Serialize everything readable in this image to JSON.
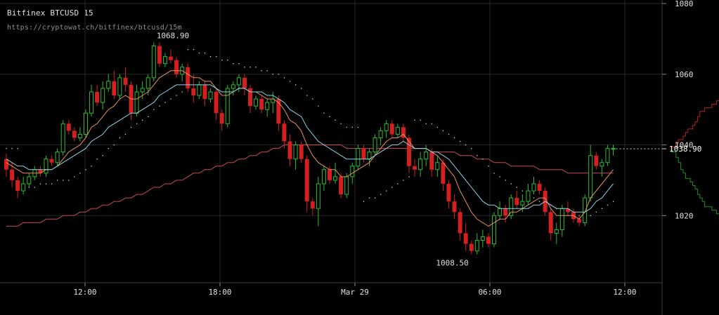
{
  "header": {
    "title": "Bitfinex BTCUSD 15",
    "url": "https://cryptowat.ch/bitfinex/btcusd/15m"
  },
  "colors": {
    "background": "#000000",
    "grid": "#262626",
    "up_candle": "#2bbf2b",
    "down_candle": "#d41f1f",
    "ema_fast": "#e8915a",
    "ema_slow": "#8fd4e6",
    "sma_long": "#c8485f",
    "sar": "#dcdcdc",
    "text": "#e0e0e0",
    "bid_depth": "#1f8f1f",
    "ask_depth": "#b32222"
  },
  "chart_data": {
    "type": "candlestick",
    "title": "Bitfinex BTCUSD 15",
    "ylim": [
      1001,
      1081
    ],
    "y_ticks": [
      1020,
      1040,
      1060,
      1080
    ],
    "y_tick_labels": [
      "1020",
      "1040",
      "1060",
      "1080"
    ],
    "x_tick_labels": [
      "12:00",
      "18:00",
      "Mar 29",
      "06:00",
      "12:00"
    ],
    "last_price": 1038.9,
    "annotations": {
      "high": "1068.90",
      "low": "1008.50",
      "last": "1038.90"
    },
    "candles": [
      [
        1036,
        1037.5,
        1031,
        1033
      ],
      [
        1033,
        1035,
        1028,
        1030
      ],
      [
        1030,
        1031,
        1025,
        1027
      ],
      [
        1027,
        1031,
        1026,
        1029
      ],
      [
        1029,
        1032,
        1028,
        1031
      ],
      [
        1031,
        1034,
        1030,
        1033
      ],
      [
        1033,
        1034,
        1031,
        1032
      ],
      [
        1032,
        1037,
        1031,
        1036
      ],
      [
        1036,
        1037,
        1034,
        1035
      ],
      [
        1035,
        1039,
        1034,
        1038
      ],
      [
        1038,
        1047,
        1037,
        1046
      ],
      [
        1046,
        1047,
        1043,
        1044
      ],
      [
        1044,
        1045,
        1041,
        1042
      ],
      [
        1042,
        1045,
        1041,
        1043
      ],
      [
        1043,
        1050,
        1042,
        1049
      ],
      [
        1049,
        1057,
        1048,
        1055
      ],
      [
        1055,
        1057,
        1051,
        1052
      ],
      [
        1052,
        1058,
        1050,
        1056
      ],
      [
        1056,
        1060,
        1055,
        1058
      ],
      [
        1058,
        1061,
        1053,
        1054
      ],
      [
        1054,
        1060,
        1053,
        1059
      ],
      [
        1059,
        1062,
        1055,
        1057
      ],
      [
        1057,
        1058,
        1047,
        1049
      ],
      [
        1049,
        1057,
        1048,
        1055
      ],
      [
        1055,
        1058,
        1053,
        1056
      ],
      [
        1056,
        1060,
        1054,
        1059
      ],
      [
        1059,
        1069,
        1058,
        1068
      ],
      [
        1068,
        1069,
        1062,
        1063
      ],
      [
        1063,
        1066,
        1062,
        1065
      ],
      [
        1065,
        1067,
        1063,
        1064
      ],
      [
        1064,
        1065,
        1059,
        1060
      ],
      [
        1060,
        1063,
        1058,
        1062
      ],
      [
        1062,
        1063,
        1055,
        1056
      ],
      [
        1056,
        1060,
        1052,
        1054
      ],
      [
        1054,
        1058,
        1053,
        1057
      ],
      [
        1057,
        1058,
        1051,
        1053
      ],
      [
        1053,
        1056,
        1052,
        1055
      ],
      [
        1055,
        1056,
        1047,
        1049
      ],
      [
        1049,
        1050,
        1044,
        1046
      ],
      [
        1046,
        1057,
        1045,
        1056
      ],
      [
        1056,
        1058,
        1054,
        1057
      ],
      [
        1057,
        1060,
        1055,
        1059
      ],
      [
        1059,
        1060,
        1054,
        1056
      ],
      [
        1056,
        1057,
        1049,
        1051
      ],
      [
        1051,
        1054,
        1050,
        1053
      ],
      [
        1053,
        1054,
        1049,
        1050
      ],
      [
        1050,
        1053,
        1048,
        1052
      ],
      [
        1052,
        1055,
        1049,
        1053
      ],
      [
        1053,
        1054,
        1044,
        1046
      ],
      [
        1046,
        1047,
        1039,
        1041
      ],
      [
        1041,
        1043,
        1034,
        1036
      ],
      [
        1036,
        1041,
        1033,
        1040
      ],
      [
        1040,
        1041,
        1035,
        1036
      ],
      [
        1036,
        1037,
        1021,
        1024
      ],
      [
        1024,
        1025,
        1020,
        1022
      ],
      [
        1022,
        1031,
        1017,
        1029
      ],
      [
        1029,
        1034,
        1027,
        1033
      ],
      [
        1033,
        1034,
        1029,
        1030
      ],
      [
        1030,
        1035,
        1029,
        1031
      ],
      [
        1031,
        1032,
        1025,
        1026
      ],
      [
        1026,
        1032,
        1025,
        1031
      ],
      [
        1031,
        1035,
        1029,
        1034
      ],
      [
        1034,
        1040,
        1033,
        1039
      ],
      [
        1039,
        1040,
        1035,
        1036
      ],
      [
        1036,
        1039,
        1034,
        1038
      ],
      [
        1038,
        1043,
        1037,
        1042
      ],
      [
        1042,
        1045,
        1040,
        1044
      ],
      [
        1044,
        1047,
        1042,
        1046
      ],
      [
        1046,
        1047,
        1042,
        1043
      ],
      [
        1043,
        1046,
        1042,
        1045
      ],
      [
        1045,
        1046,
        1041,
        1042
      ],
      [
        1042,
        1043,
        1032,
        1034
      ],
      [
        1034,
        1036,
        1031,
        1033
      ],
      [
        1033,
        1038,
        1031,
        1036
      ],
      [
        1036,
        1040,
        1034,
        1038
      ],
      [
        1038,
        1039,
        1031,
        1033
      ],
      [
        1033,
        1037,
        1031,
        1035
      ],
      [
        1035,
        1036,
        1027,
        1029
      ],
      [
        1029,
        1030,
        1022,
        1024
      ],
      [
        1024,
        1026,
        1019,
        1021
      ],
      [
        1021,
        1022,
        1013,
        1015
      ],
      [
        1015,
        1018,
        1010,
        1012
      ],
      [
        1012,
        1013,
        1009,
        1010
      ],
      [
        1010,
        1015,
        1009,
        1013
      ],
      [
        1013,
        1016,
        1011,
        1014
      ],
      [
        1014,
        1015,
        1011,
        1012
      ],
      [
        1012,
        1021,
        1011,
        1020
      ],
      [
        1020,
        1024,
        1019,
        1022
      ],
      [
        1022,
        1023,
        1018,
        1020
      ],
      [
        1020,
        1026,
        1019,
        1025
      ],
      [
        1025,
        1027,
        1022,
        1023
      ],
      [
        1023,
        1026,
        1021,
        1024
      ],
      [
        1024,
        1029,
        1023,
        1027
      ],
      [
        1027,
        1031,
        1026,
        1029
      ],
      [
        1029,
        1030,
        1026,
        1027
      ],
      [
        1027,
        1028,
        1020,
        1021
      ],
      [
        1021,
        1022,
        1013,
        1015
      ],
      [
        1015,
        1018,
        1012,
        1016
      ],
      [
        1016,
        1023,
        1014,
        1022
      ],
      [
        1022,
        1024,
        1020,
        1021
      ],
      [
        1021,
        1022,
        1018,
        1019
      ],
      [
        1019,
        1020,
        1017,
        1018
      ],
      [
        1018,
        1026,
        1017,
        1025
      ],
      [
        1025,
        1040,
        1024,
        1037
      ],
      [
        1037,
        1038,
        1033,
        1034
      ],
      [
        1034,
        1036,
        1031,
        1035
      ],
      [
        1035,
        1040,
        1034,
        1039
      ],
      [
        1039,
        1040,
        1037,
        1039
      ]
    ],
    "ema_fast": [
      1035,
      1034,
      1033,
      1032,
      1032,
      1032,
      1032,
      1033,
      1033,
      1034,
      1036,
      1038,
      1039,
      1040,
      1042,
      1045,
      1046,
      1048,
      1050,
      1051,
      1053,
      1054,
      1053,
      1053,
      1054,
      1055,
      1057,
      1059,
      1060,
      1061,
      1061,
      1061,
      1060,
      1059,
      1059,
      1058,
      1058,
      1056,
      1054,
      1054,
      1055,
      1056,
      1056,
      1055,
      1055,
      1054,
      1053,
      1053,
      1052,
      1050,
      1047,
      1046,
      1044,
      1040,
      1037,
      1035,
      1034,
      1033,
      1033,
      1031,
      1031,
      1032,
      1033,
      1034,
      1035,
      1037,
      1039,
      1041,
      1042,
      1042,
      1043,
      1041,
      1039,
      1039,
      1039,
      1038,
      1037,
      1035,
      1033,
      1031,
      1027,
      1024,
      1021,
      1019,
      1018,
      1017,
      1018,
      1019,
      1019,
      1021,
      1021,
      1022,
      1023,
      1024,
      1025,
      1025,
      1022,
      1020,
      1020,
      1020,
      1020,
      1019,
      1021,
      1025,
      1027,
      1029,
      1031,
      1033
    ],
    "ema_slow": [
      1036,
      1035,
      1034,
      1034,
      1033,
      1033,
      1033,
      1033,
      1033,
      1034,
      1035,
      1036,
      1037,
      1038,
      1039,
      1041,
      1042,
      1043,
      1045,
      1046,
      1047,
      1048,
      1049,
      1049,
      1050,
      1051,
      1052,
      1054,
      1055,
      1056,
      1057,
      1057,
      1057,
      1057,
      1057,
      1057,
      1057,
      1056,
      1055,
      1055,
      1055,
      1056,
      1056,
      1055,
      1055,
      1055,
      1054,
      1054,
      1053,
      1052,
      1050,
      1049,
      1048,
      1045,
      1043,
      1041,
      1040,
      1039,
      1038,
      1037,
      1036,
      1036,
      1036,
      1036,
      1036,
      1037,
      1038,
      1039,
      1040,
      1040,
      1041,
      1040,
      1039,
      1039,
      1039,
      1038,
      1038,
      1037,
      1036,
      1034,
      1032,
      1030,
      1028,
      1026,
      1024,
      1023,
      1023,
      1022,
      1022,
      1022,
      1022,
      1022,
      1022,
      1023,
      1023,
      1024,
      1023,
      1022,
      1022,
      1022,
      1021,
      1021,
      1021,
      1022,
      1024,
      1025,
      1027,
      1029
    ],
    "sma_long": [
      1017,
      1017,
      1017,
      1018,
      1018,
      1018,
      1018,
      1019,
      1019,
      1019,
      1020,
      1020,
      1020,
      1021,
      1021,
      1022,
      1022,
      1023,
      1023,
      1024,
      1024,
      1025,
      1025,
      1026,
      1026,
      1027,
      1028,
      1028,
      1029,
      1029,
      1030,
      1030,
      1031,
      1032,
      1032,
      1033,
      1033,
      1034,
      1034,
      1035,
      1035,
      1036,
      1036,
      1037,
      1037,
      1038,
      1038,
      1039,
      1039,
      1040,
      1040,
      1040,
      1040,
      1040,
      1040,
      1040,
      1040,
      1040,
      1040,
      1040,
      1039,
      1039,
      1039,
      1039,
      1039,
      1039,
      1039,
      1039,
      1039,
      1039,
      1039,
      1039,
      1039,
      1039,
      1039,
      1038,
      1038,
      1038,
      1038,
      1038,
      1037,
      1037,
      1037,
      1036,
      1036,
      1036,
      1035,
      1035,
      1035,
      1034,
      1034,
      1034,
      1034,
      1034,
      1033,
      1033,
      1033,
      1033,
      1033,
      1032,
      1032,
      1032,
      1032,
      1032,
      1032,
      1032,
      1032,
      1032
    ],
    "sar": [
      1039,
      1039,
      1039,
      1028,
      1028,
      1028,
      1029,
      1029,
      1029,
      1030,
      1030,
      1030,
      1031,
      1032,
      1033,
      1034,
      1036,
      1037,
      1039,
      1040,
      1042,
      1043,
      1045,
      1046,
      1047,
      1048,
      1050,
      1051,
      1052,
      1053,
      1054,
      1055,
      1067,
      1067,
      1066,
      1066,
      1065,
      1065,
      1064,
      1064,
      1063,
      1063,
      1062,
      1062,
      1062,
      1061,
      1061,
      1060,
      1060,
      1059,
      1058,
      1057,
      1056,
      1054,
      1053,
      1051,
      1049,
      1048,
      1047,
      1046,
      1045,
      1045,
      1045,
      1024,
      1025,
      1025,
      1026,
      1027,
      1028,
      1029,
      1030,
      1031,
      1047,
      1047,
      1046,
      1046,
      1045,
      1044,
      1043,
      1042,
      1041,
      1040,
      1039,
      1037,
      1036,
      1034,
      1032,
      1031,
      1030,
      1029,
      1028,
      1027,
      1026,
      1025,
      1024,
      1023,
      1023,
      1022,
      1022,
      1021,
      1021,
      1020,
      1020,
      1020,
      1021,
      1022,
      1023,
      1024
    ],
    "depth": {
      "asks": [
        [
          1038.9,
          0
        ],
        [
          1039.5,
          2
        ],
        [
          1040.5,
          3
        ],
        [
          1041.5,
          5
        ],
        [
          1042.5,
          6
        ],
        [
          1043.5,
          7
        ],
        [
          1044.5,
          9
        ],
        [
          1045.5,
          10
        ],
        [
          1046.5,
          11
        ],
        [
          1048,
          12
        ],
        [
          1049.5,
          14
        ],
        [
          1050.5,
          17
        ],
        [
          1051.5,
          19
        ],
        [
          1052.5,
          21
        ],
        [
          1060,
          23
        ]
      ],
      "bids": [
        [
          1038.9,
          0
        ],
        [
          1038,
          2
        ],
        [
          1036.5,
          3
        ],
        [
          1035,
          4
        ],
        [
          1033,
          5
        ],
        [
          1032,
          6
        ],
        [
          1030.5,
          8
        ],
        [
          1029.5,
          9
        ],
        [
          1028.5,
          10
        ],
        [
          1027.5,
          11
        ],
        [
          1026,
          12
        ],
        [
          1025,
          13
        ],
        [
          1024,
          14
        ],
        [
          1022.5,
          17
        ],
        [
          1021.5,
          19
        ],
        [
          1020.5,
          21
        ],
        [
          1015,
          23
        ]
      ]
    }
  }
}
